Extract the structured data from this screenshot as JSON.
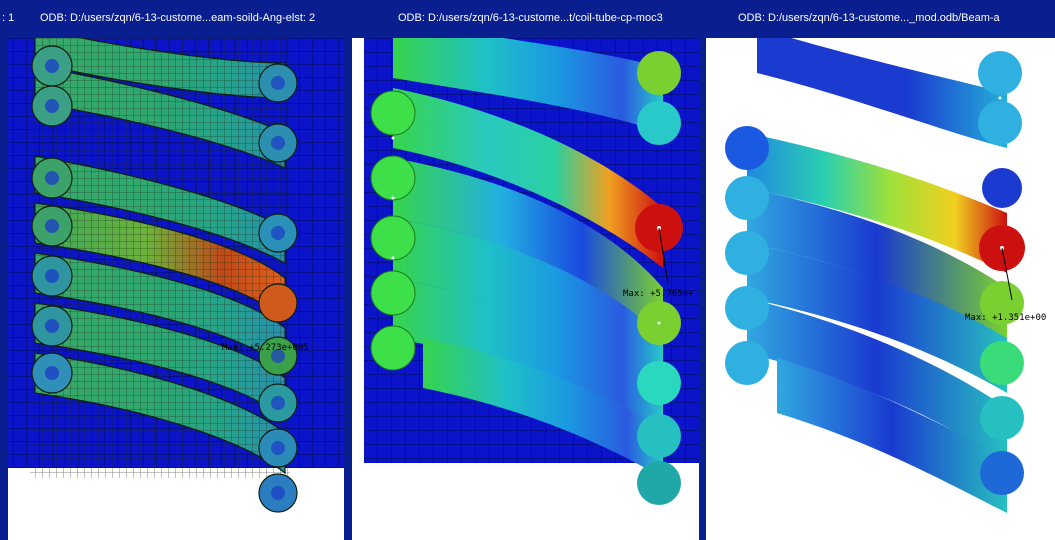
{
  "viewports": [
    {
      "title_prefix": ": 1",
      "title": "ODB: D:/users/zqn/6-13-custome...eam-soild-Ang-elst: 2",
      "max_label": "Max: +5.273e+005"
    },
    {
      "title": "ODB: D:/users/zqn/6-13-custome...t/coil-tube-cp-moc3",
      "max_label": "Max: +5.765e+"
    },
    {
      "title": "ODB: D:/users/zqn/6-13-custome..._mod.odb/Beam-a",
      "max_label": "Max: +1.351e+00"
    }
  ],
  "colors": {
    "titlebar": "#0a1f8f",
    "mesh_background": "#0b14c8",
    "white": "#ffffff"
  }
}
